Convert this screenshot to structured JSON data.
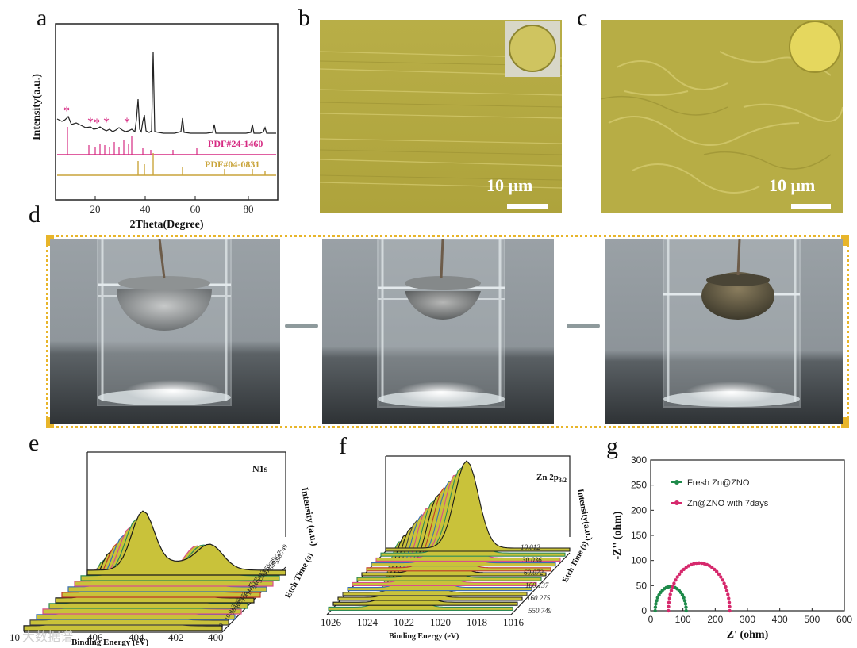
{
  "panel_labels": {
    "a": "a",
    "b": "b",
    "c": "c",
    "d": "d",
    "e": "e",
    "f": "f",
    "g": "g"
  },
  "panel_a": {
    "ylabel": "Intensity(a.u.)",
    "xlabel": "2Theta(Degree)",
    "xticks": [
      "20",
      "40",
      "60",
      "80"
    ],
    "ref1": "PDF#24-1460",
    "ref2": "PDF#04-0831",
    "ref1_color": "#d62a82",
    "ref2_color": "#c9a43a"
  },
  "panel_b": {
    "scale": "10 μm"
  },
  "panel_c": {
    "scale": "10 μm"
  },
  "panel_e": {
    "label": "N1s",
    "zlabel": "Intensity (a.u.)",
    "xlabel": "Binding Energy (eV)",
    "xticks": [
      "10",
      "406",
      "404",
      "402",
      "400"
    ],
    "etch_label": "Etch Time (s)",
    "etch_values": [
      "0",
      "10.012",
      "30.036",
      "60.072",
      "100.137",
      "160.275",
      "240.413",
      "320.551",
      "400.689",
      "500.827",
      "550.749"
    ]
  },
  "panel_f": {
    "label": "Zn 2p",
    "label_sub": "3/2",
    "zlabel": "Intensity(a.u.)",
    "xlabel": "Binding Energy (eV)",
    "xticks": [
      "1026",
      "1024",
      "1022",
      "1020",
      "1018",
      "1016"
    ],
    "etch_label": "Etch Time (s)",
    "etch_values": [
      "10.012",
      "30.036",
      "60.072",
      "100.137",
      "160.275",
      "550.749"
    ]
  },
  "watermark": "大数据谱",
  "chart_data": [
    {
      "panel": "g",
      "type": "scatter",
      "title": "",
      "xlabel": "Z' (ohm)",
      "ylabel": "-Z'' (ohm)",
      "xlim": [
        0,
        600
      ],
      "ylim": [
        0,
        300
      ],
      "xticks": [
        0,
        100,
        200,
        300,
        400,
        500,
        600
      ],
      "yticks": [
        0,
        50,
        100,
        150,
        200,
        250,
        300
      ],
      "legend_position": "top-left",
      "series": [
        {
          "name": "Fresh Zn@ZNO",
          "color": "#1e8a4a",
          "center": 62,
          "radius": 48,
          "npts": 22
        },
        {
          "name": "Zn@ZNO with 7days",
          "color": "#d6286c",
          "center": 150,
          "radius": 95,
          "npts": 36
        }
      ]
    }
  ]
}
